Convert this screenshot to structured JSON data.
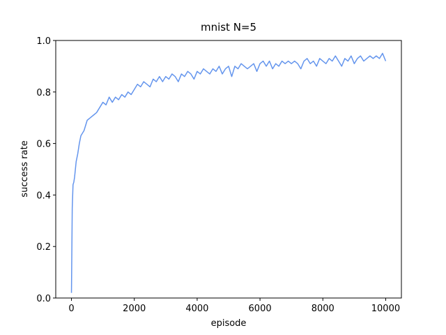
{
  "chart_data": {
    "type": "line",
    "title": "mnist N=5",
    "x_label": "episode",
    "y_label": "success rate",
    "x": [
      0,
      25,
      50,
      75,
      100,
      150,
      200,
      250,
      300,
      400,
      500,
      600,
      700,
      800,
      900,
      1000,
      1100,
      1200,
      1300,
      1400,
      1500,
      1600,
      1700,
      1800,
      1900,
      2000,
      2100,
      2200,
      2300,
      2400,
      2500,
      2600,
      2700,
      2800,
      2900,
      3000,
      3100,
      3200,
      3300,
      3400,
      3500,
      3600,
      3700,
      3800,
      3900,
      4000,
      4100,
      4200,
      4300,
      4400,
      4500,
      4600,
      4700,
      4800,
      4900,
      5000,
      5100,
      5200,
      5300,
      5400,
      5500,
      5600,
      5700,
      5800,
      5900,
      6000,
      6100,
      6200,
      6300,
      6400,
      6500,
      6600,
      6700,
      6800,
      6900,
      7000,
      7100,
      7200,
      7300,
      7400,
      7500,
      7600,
      7700,
      7800,
      7900,
      8000,
      8100,
      8200,
      8300,
      8400,
      8500,
      8600,
      8700,
      8800,
      8900,
      9000,
      9100,
      9200,
      9300,
      9400,
      9500,
      9600,
      9700,
      9800,
      9900,
      10000
    ],
    "series": [
      {
        "name": "success rate",
        "color": "#6495ed",
        "values": [
          0.02,
          0.35,
          0.44,
          0.45,
          0.47,
          0.53,
          0.56,
          0.6,
          0.63,
          0.65,
          0.69,
          0.7,
          0.71,
          0.72,
          0.74,
          0.76,
          0.75,
          0.78,
          0.76,
          0.78,
          0.77,
          0.79,
          0.78,
          0.8,
          0.79,
          0.81,
          0.83,
          0.82,
          0.84,
          0.83,
          0.82,
          0.85,
          0.84,
          0.86,
          0.84,
          0.86,
          0.85,
          0.87,
          0.86,
          0.84,
          0.87,
          0.86,
          0.88,
          0.87,
          0.85,
          0.88,
          0.87,
          0.89,
          0.88,
          0.87,
          0.89,
          0.88,
          0.9,
          0.87,
          0.89,
          0.9,
          0.86,
          0.9,
          0.89,
          0.91,
          0.9,
          0.89,
          0.9,
          0.91,
          0.88,
          0.91,
          0.92,
          0.9,
          0.92,
          0.89,
          0.91,
          0.9,
          0.92,
          0.91,
          0.92,
          0.91,
          0.92,
          0.91,
          0.89,
          0.92,
          0.93,
          0.91,
          0.92,
          0.9,
          0.93,
          0.92,
          0.91,
          0.93,
          0.92,
          0.94,
          0.92,
          0.9,
          0.93,
          0.92,
          0.94,
          0.91,
          0.93,
          0.94,
          0.92,
          0.93,
          0.94,
          0.93,
          0.94,
          0.93,
          0.95,
          0.92
        ]
      }
    ],
    "xlim": [
      -500,
      10500
    ],
    "ylim": [
      0,
      1
    ],
    "xticks": [
      0,
      2000,
      4000,
      6000,
      8000,
      10000
    ],
    "yticks": [
      {
        "value": 0,
        "label": "0.0"
      },
      0.2,
      0.4,
      0.6,
      0.8,
      {
        "value": 1,
        "label": "1.0"
      }
    ]
  }
}
